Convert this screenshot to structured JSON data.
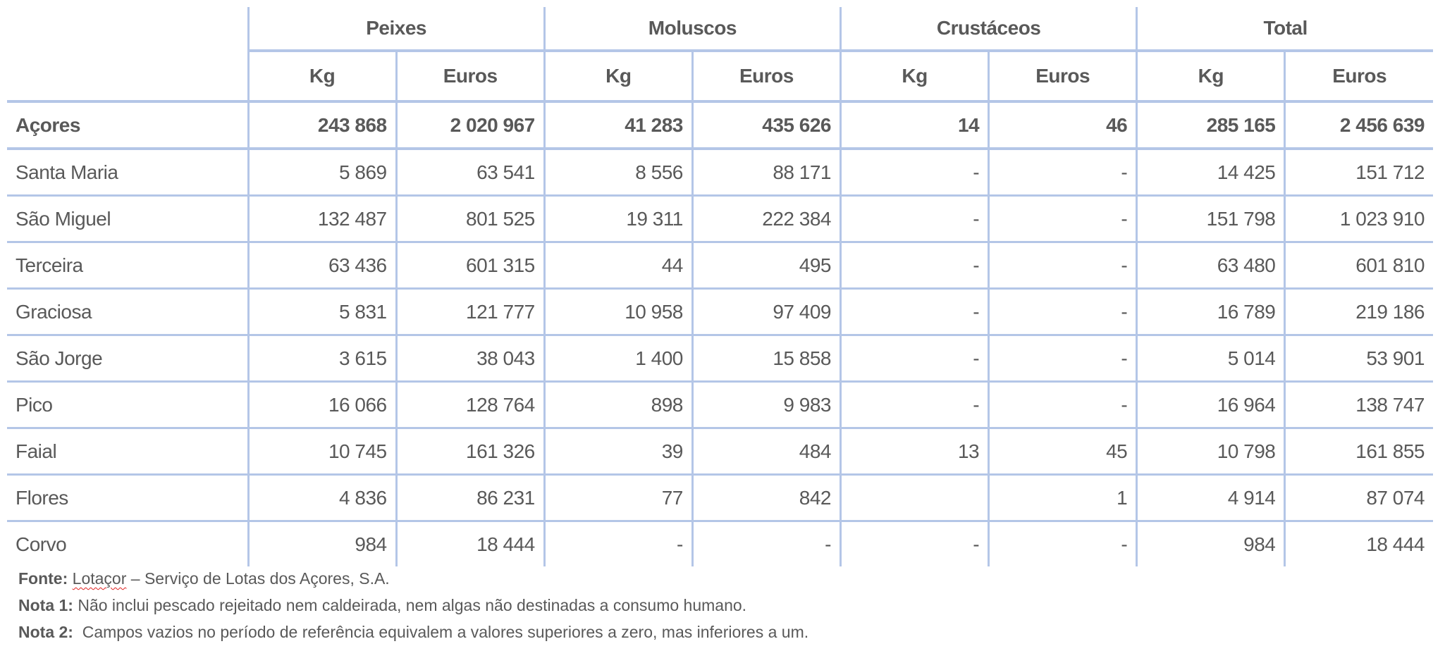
{
  "table": {
    "groups": [
      "Peixes",
      "Moluscos",
      "Crustáceos",
      "Total"
    ],
    "subheaders": [
      "Kg",
      "Euros",
      "Kg",
      "Euros",
      "Kg",
      "Euros",
      "Kg",
      "Euros"
    ],
    "rows": [
      {
        "label": "Açores",
        "total": true,
        "values": [
          "243 868",
          "2 020 967",
          "41 283",
          "435 626",
          "14",
          "46",
          "285 165",
          "2 456 639"
        ]
      },
      {
        "label": "Santa Maria",
        "values": [
          "5 869",
          "63 541",
          "8 556",
          "88 171",
          "-",
          "-",
          "14 425",
          "151 712"
        ]
      },
      {
        "label": "São Miguel",
        "values": [
          "132 487",
          "801 525",
          "19 311",
          "222 384",
          "-",
          "-",
          "151 798",
          "1 023 910"
        ]
      },
      {
        "label": "Terceira",
        "values": [
          "63 436",
          "601 315",
          "44",
          "495",
          "-",
          "-",
          "63 480",
          "601 810"
        ]
      },
      {
        "label": "Graciosa",
        "values": [
          "5 831",
          "121 777",
          "10 958",
          "97 409",
          "-",
          "-",
          "16 789",
          "219 186"
        ]
      },
      {
        "label": "São Jorge",
        "values": [
          "3 615",
          "38 043",
          "1 400",
          "15 858",
          "-",
          "-",
          "5 014",
          "53 901"
        ]
      },
      {
        "label": "Pico",
        "values": [
          "16 066",
          "128 764",
          "898",
          "9 983",
          "-",
          "-",
          "16 964",
          "138 747"
        ]
      },
      {
        "label": "Faial",
        "values": [
          "10 745",
          "161 326",
          "39",
          "484",
          "13",
          "45",
          "10 798",
          "161 855"
        ]
      },
      {
        "label": "Flores",
        "values": [
          "4 836",
          "86 231",
          "77",
          "842",
          "",
          "1",
          "4 914",
          "87 074"
        ]
      },
      {
        "label": "Corvo",
        "values": [
          "984",
          "18 444",
          "-",
          "-",
          "-",
          "-",
          "984",
          "18 444"
        ]
      }
    ]
  },
  "notes": {
    "source_label": "Fonte:",
    "source_name": "Lotaçor",
    "source_rest": " – Serviço de Lotas dos Açores, S.A.",
    "note1_label": "Nota 1:",
    "note1_text": " Não inclui pescado rejeitado nem caldeirada, nem algas não destinadas a consumo humano.",
    "note2_label": "Nota 2:",
    "note2_text": "  Campos vazios no período de referência equivalem a valores superiores a zero, mas inferiores a um."
  },
  "colors": {
    "grid": "#b4c6e7",
    "text": "#595959"
  }
}
